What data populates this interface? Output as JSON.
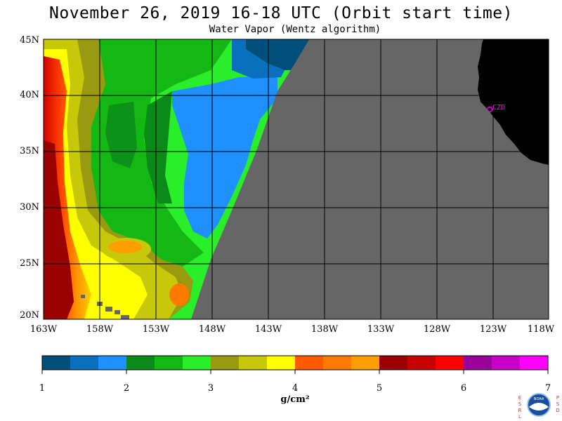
{
  "title": "November 26, 2019  16-18 UTC  (Orbit start time)",
  "subtitle": "Water Vapor (Wentz algorithm)",
  "lat_labels": [
    "45N",
    "40N",
    "35N",
    "30N",
    "25N",
    "20N"
  ],
  "lon_labels": [
    "163W",
    "158W",
    "153W",
    "148W",
    "143W",
    "138W",
    "133W",
    "128W",
    "123W",
    "118W"
  ],
  "station_label": "CZD",
  "colorbar": {
    "ticks": [
      "1",
      "2",
      "3",
      "4",
      "5",
      "6",
      "7"
    ],
    "units": "g/cm²",
    "colors": [
      "#004e7a",
      "#0a6fbd",
      "#1e90ff",
      "#0b8a1a",
      "#14b814",
      "#2aee2a",
      "#9a9a10",
      "#c8c80a",
      "#ffff00",
      "#ff5a00",
      "#ff7a00",
      "#ff9e00",
      "#9a0000",
      "#c80000",
      "#ff0000",
      "#9a009a",
      "#c800c8",
      "#ff00ff"
    ]
  },
  "colors": {
    "no_data": "#666666",
    "land": "#000000",
    "grid": "#000000",
    "station": "#ff00ff"
  },
  "logo": {
    "left_letters": "ESRL",
    "right_letters": "PSD",
    "center_text": "NOAA"
  }
}
